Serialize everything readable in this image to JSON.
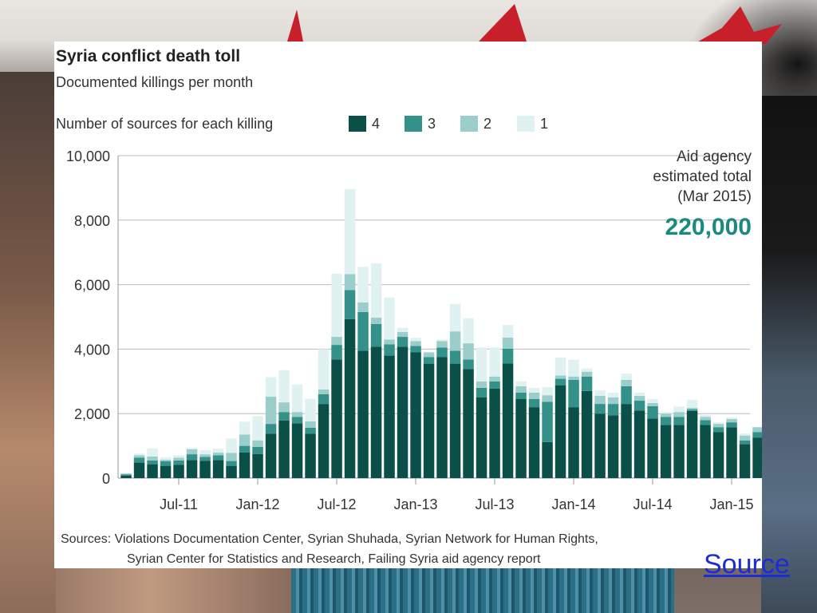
{
  "link": {
    "source_label": "Source"
  },
  "chart_data": {
    "type": "bar",
    "stacked": true,
    "title": "Syria conflict death toll",
    "subtitle": "Documented killings per month",
    "legend_title": "Number of sources for each killing",
    "legend_position": "top",
    "ylim": [
      0,
      10000
    ],
    "yticks": [
      "0",
      "2,000",
      "4,000",
      "6,000",
      "8,000",
      "10,000"
    ],
    "ytick_values": [
      0,
      2000,
      4000,
      6000,
      8000,
      10000
    ],
    "xtick_labels": [
      "Jul-11",
      "Jan-12",
      "Jul-12",
      "Jan-13",
      "Jul-13",
      "Jan-14",
      "Jul-14",
      "Jan-15"
    ],
    "xtick_indices": [
      4,
      10,
      16,
      22,
      28,
      34,
      40,
      46
    ],
    "months_start": "Mar-11",
    "series": [
      {
        "name": "4",
        "color": "#0a5049",
        "values": [
          80,
          480,
          430,
          380,
          410,
          560,
          540,
          560,
          380,
          800,
          750,
          1380,
          1790,
          1700,
          1380,
          2300,
          3680,
          4930,
          3950,
          4080,
          3800,
          4080,
          3900,
          3550,
          3750,
          3550,
          3380,
          2500,
          2780,
          3560,
          2450,
          2200,
          1120,
          2880,
          2200,
          2700,
          2000,
          1950,
          2300,
          2100,
          1850,
          1650,
          1650,
          2080,
          1650,
          1430,
          1580,
          1050,
          1250
        ]
      },
      {
        "name": "3",
        "color": "#34918a",
        "values": [
          40,
          150,
          120,
          140,
          140,
          180,
          120,
          150,
          150,
          200,
          220,
          300,
          260,
          200,
          180,
          300,
          450,
          900,
          1200,
          700,
          350,
          300,
          200,
          200,
          300,
          400,
          300,
          300,
          220,
          450,
          200,
          250,
          1250,
          200,
          850,
          450,
          300,
          350,
          550,
          300,
          380,
          250,
          250,
          50,
          150,
          150,
          150,
          120,
          180
        ]
      },
      {
        "name": "2",
        "color": "#9bcdcb",
        "values": [
          20,
          80,
          120,
          50,
          80,
          150,
          80,
          80,
          250,
          350,
          200,
          850,
          300,
          150,
          200,
          150,
          250,
          500,
          300,
          200,
          150,
          150,
          150,
          150,
          200,
          600,
          500,
          200,
          150,
          350,
          200,
          200,
          200,
          100,
          100,
          150,
          250,
          200,
          200,
          150,
          100,
          100,
          150,
          50,
          100,
          100,
          100,
          150,
          150
        ]
      },
      {
        "name": "1",
        "color": "#e0f1f1",
        "values": [
          0,
          50,
          250,
          70,
          80,
          50,
          130,
          120,
          450,
          400,
          750,
          600,
          1000,
          850,
          700,
          1250,
          1960,
          2630,
          1100,
          1680,
          1300,
          130,
          100,
          0,
          50,
          850,
          780,
          1050,
          900,
          390,
          150,
          150,
          250,
          560,
          520,
          100,
          170,
          150,
          190,
          100,
          120,
          50,
          170,
          250,
          60,
          50,
          50,
          60,
          0
        ]
      }
    ],
    "annotation": {
      "text_lines": [
        "Aid agency",
        "estimated total",
        "(Mar 2015)"
      ],
      "value": "220,000",
      "value_color": "#1a8a7e"
    },
    "sources_lines": [
      "Sources: Violations Documentation Center, Syrian Shuhada, Syrian Network for Human Rights,",
      "Syrian Center for Statistics and Research, Failing Syria aid agency report"
    ]
  }
}
